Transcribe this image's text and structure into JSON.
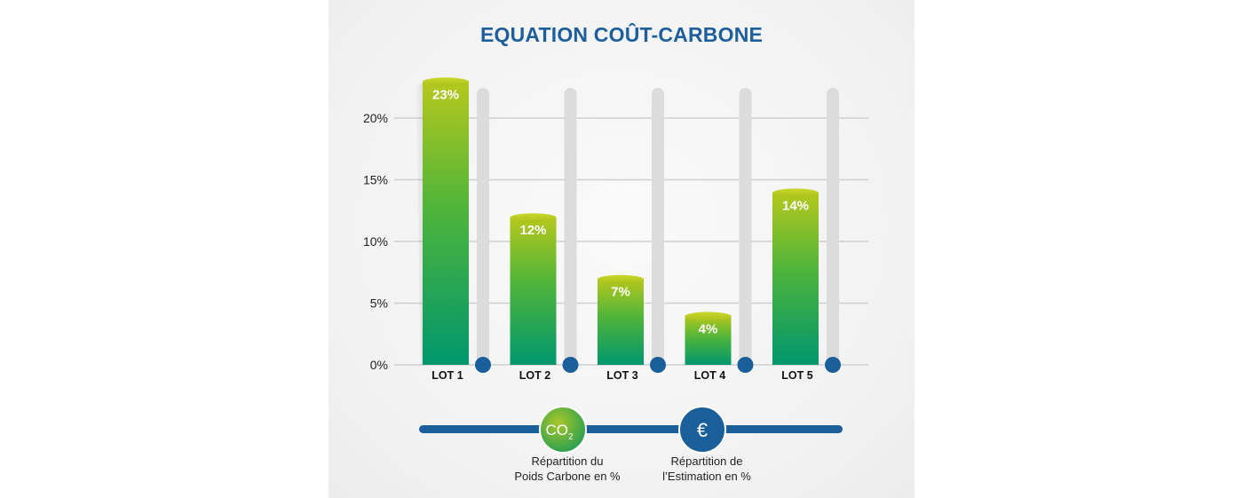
{
  "chart_data": {
    "type": "bar",
    "title": "EQUATION COÛT-CARBONE",
    "categories": [
      "LOT 1",
      "LOT 2",
      "LOT 3",
      "LOT 4",
      "LOT 5"
    ],
    "values": [
      23,
      12,
      7,
      4,
      14
    ],
    "data_labels": [
      "23%",
      "12%",
      "7%",
      "4%",
      "14%"
    ],
    "yticks": [
      "0%",
      "5%",
      "10%",
      "15%",
      "20%"
    ],
    "ytick_values": [
      0,
      5,
      10,
      15,
      20
    ],
    "ylim": [
      0,
      23
    ],
    "grid": true,
    "colors": {
      "bar_top": "#b6c81d",
      "bar_bottom": "#00976e",
      "track": "#dcdcdc",
      "dot": "#1b5f9a",
      "axis_line": "#1b5f9a"
    }
  },
  "legend": {
    "co2": {
      "symbol": "CO",
      "subscript": "2",
      "caption_line1": "Répartition du",
      "caption_line2": "Poids Carbone en %"
    },
    "euro": {
      "symbol": "€",
      "caption_line1": "Répartition de",
      "caption_line2": "l’Estimation en %"
    }
  }
}
